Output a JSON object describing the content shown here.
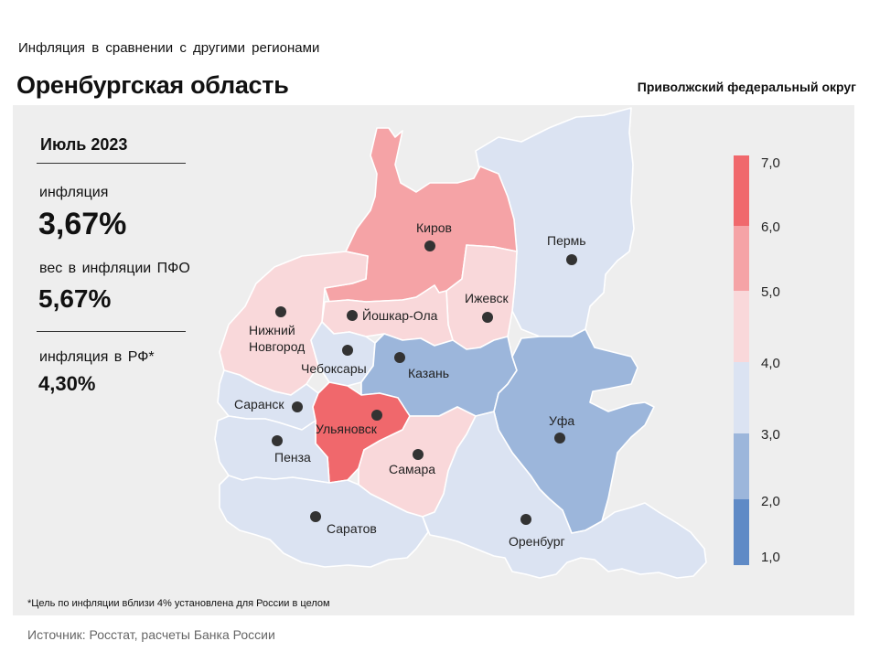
{
  "header": {
    "subtitle": "Инфляция в сравнении с другими регионами",
    "title": "Оренбургская область",
    "district": "Приволжский федеральный округ"
  },
  "stats": {
    "period": "Июль 2023",
    "inflation_label": "инфляция",
    "inflation_value": "3,67%",
    "weight_label": "вес в инфляции ПФО",
    "weight_value": "5,67%",
    "rf_label": "инфляция в РФ*",
    "rf_value": "4,30%"
  },
  "footnote": "*Цель по инфляции вблизи 4% установлена для России в целом",
  "source": "Источник: Росстат, расчеты Банка России",
  "legend": {
    "ticks": [
      "7,0",
      "6,0",
      "5,0",
      "4,0",
      "3,0",
      "2,0",
      "1,0"
    ],
    "bands": [
      {
        "range": "6,0–7,0",
        "color": "#f0686c"
      },
      {
        "range": "5,0–6,0",
        "color": "#f5a3a6"
      },
      {
        "range": "4,0–5,0",
        "color": "#f9d8da"
      },
      {
        "range": "3,0–4,0",
        "color": "#dbe3f2"
      },
      {
        "range": "2,0–3,0",
        "color": "#9cb6db"
      },
      {
        "range": "1,0–2,0",
        "color": "#5f8ac6"
      }
    ]
  },
  "regions": [
    {
      "id": "kirov",
      "city": "Киров",
      "color": "#f5a3a6"
    },
    {
      "id": "perm",
      "city": "Пермь",
      "color": "#dbe3f2"
    },
    {
      "id": "izhevsk",
      "city": "Ижевск",
      "color": "#f9d8da"
    },
    {
      "id": "yoshkar-ola",
      "city": "Йошкар-Ола",
      "color": "#f9d8da"
    },
    {
      "id": "nizhny",
      "city": "Нижний Новгород",
      "city_line1": "Нижний",
      "city_line2": "Новгород",
      "color": "#f9d8da"
    },
    {
      "id": "cheboksary",
      "city": "Чебоксары",
      "color": "#dbe3f2"
    },
    {
      "id": "kazan",
      "city": "Казань",
      "color": "#9cb6db"
    },
    {
      "id": "ufa",
      "city": "Уфа",
      "color": "#9cb6db"
    },
    {
      "id": "saransk",
      "city": "Саранск",
      "color": "#dbe3f2"
    },
    {
      "id": "ulyanovsk",
      "city": "Ульяновск",
      "color": "#f0686c"
    },
    {
      "id": "penza",
      "city": "Пенза",
      "color": "#dbe3f2"
    },
    {
      "id": "samara",
      "city": "Самара",
      "color": "#f9d8da"
    },
    {
      "id": "saratov",
      "city": "Саратов",
      "color": "#dbe3f2"
    },
    {
      "id": "orenburg",
      "city": "Оренбург",
      "color": "#dbe3f2"
    }
  ]
}
